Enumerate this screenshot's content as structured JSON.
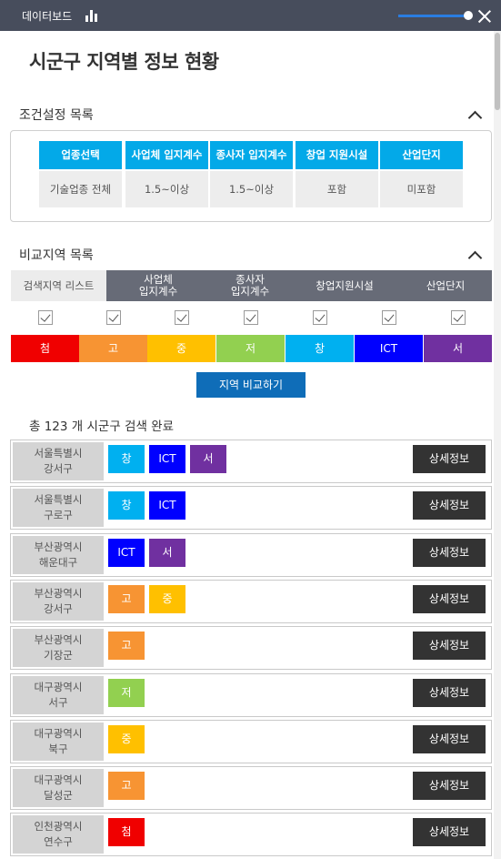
{
  "app": {
    "title": "데이터보드"
  },
  "page_title": "시군구 지역별 정보 현황",
  "conditions": {
    "heading": "조건설정 목록",
    "columns": [
      {
        "label": "업종선택",
        "value": "기술업종 전체"
      },
      {
        "label": "사업체 입지계수",
        "value": "1.5~이상"
      },
      {
        "label": "종사자 입지계수",
        "value": "1.5~이상"
      },
      {
        "label": "창업 지원시설",
        "value": "포함"
      },
      {
        "label": "산업단지",
        "value": "미포함"
      }
    ]
  },
  "compare": {
    "heading": "비교지역 목록",
    "first_col": "검색지역 리스트",
    "columns": [
      {
        "line1": "사업체",
        "line2": "입지계수"
      },
      {
        "line1": "종사자",
        "line2": "입지계수"
      },
      {
        "line1": "창업지원시설",
        "line2": ""
      },
      {
        "line1": "산업단지",
        "line2": ""
      }
    ],
    "legend": [
      {
        "label": "첨",
        "color": "#f00000"
      },
      {
        "label": "고",
        "color": "#f79433"
      },
      {
        "label": "중",
        "color": "#ffc000"
      },
      {
        "label": "저",
        "color": "#92d050"
      },
      {
        "label": "창",
        "color": "#00b0f0"
      },
      {
        "label": "ICT",
        "color": "#0000ff"
      },
      {
        "label": "서",
        "color": "#7030a0"
      }
    ],
    "button": "지역 비교하기"
  },
  "result_summary": "총 123 개 시군구 검색 완료",
  "detail_label": "상세정보",
  "results": [
    {
      "line1": "서울특별시",
      "line2": "강서구",
      "tags": [
        "창",
        "ICT",
        "서"
      ]
    },
    {
      "line1": "서울특별시",
      "line2": "구로구",
      "tags": [
        "창",
        "ICT"
      ]
    },
    {
      "line1": "부산광역시",
      "line2": "해운대구",
      "tags": [
        "ICT",
        "서"
      ]
    },
    {
      "line1": "부산광역시",
      "line2": "강서구",
      "tags": [
        "고",
        "중"
      ]
    },
    {
      "line1": "부산광역시",
      "line2": "기장군",
      "tags": [
        "고"
      ]
    },
    {
      "line1": "대구광역시",
      "line2": "서구",
      "tags": [
        "저"
      ]
    },
    {
      "line1": "대구광역시",
      "line2": "북구",
      "tags": [
        "중"
      ]
    },
    {
      "line1": "대구광역시",
      "line2": "달성군",
      "tags": [
        "고"
      ]
    },
    {
      "line1": "인천광역시",
      "line2": "연수구",
      "tags": [
        "첨"
      ]
    }
  ]
}
